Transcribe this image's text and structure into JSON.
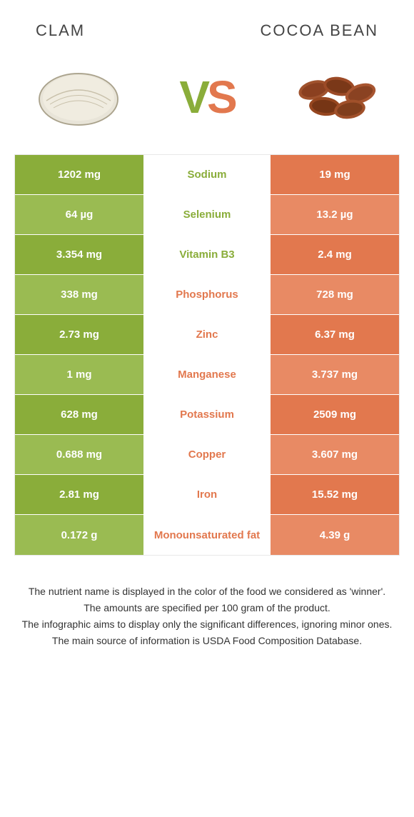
{
  "header": {
    "left_title": "CLAM",
    "right_title": "COCOA BEAN"
  },
  "vs": {
    "v_text": "V",
    "s_text": "S",
    "left_color": "#8aad3a",
    "right_color": "#e2784e"
  },
  "colors": {
    "left_food": "#8aad3a",
    "right_food": "#e2784e",
    "left_light": "#9abb52",
    "right_light": "#e88a64",
    "row_border": "#ffffff"
  },
  "rows": [
    {
      "nutrient": "Sodium",
      "left": "1202 mg",
      "right": "19 mg",
      "winner": "left"
    },
    {
      "nutrient": "Selenium",
      "left": "64 µg",
      "right": "13.2 µg",
      "winner": "left"
    },
    {
      "nutrient": "Vitamin B3",
      "left": "3.354 mg",
      "right": "2.4 mg",
      "winner": "left"
    },
    {
      "nutrient": "Phosphorus",
      "left": "338 mg",
      "right": "728 mg",
      "winner": "right"
    },
    {
      "nutrient": "Zinc",
      "left": "2.73 mg",
      "right": "6.37 mg",
      "winner": "right"
    },
    {
      "nutrient": "Manganese",
      "left": "1 mg",
      "right": "3.737 mg",
      "winner": "right"
    },
    {
      "nutrient": "Potassium",
      "left": "628 mg",
      "right": "2509 mg",
      "winner": "right"
    },
    {
      "nutrient": "Copper",
      "left": "0.688 mg",
      "right": "3.607 mg",
      "winner": "right"
    },
    {
      "nutrient": "Iron",
      "left": "2.81 mg",
      "right": "15.52 mg",
      "winner": "right"
    },
    {
      "nutrient": "Monounsaturated fat",
      "left": "0.172 g",
      "right": "4.39 g",
      "winner": "right"
    }
  ],
  "footer": {
    "line1": "The nutrient name is displayed in the color of the food we considered as 'winner'.",
    "line2": "The amounts are specified per 100 gram of the product.",
    "line3": "The infographic aims to display only the significant differences, ignoring minor ones.",
    "line4": "The main source of information is USDA Food Composition Database."
  }
}
